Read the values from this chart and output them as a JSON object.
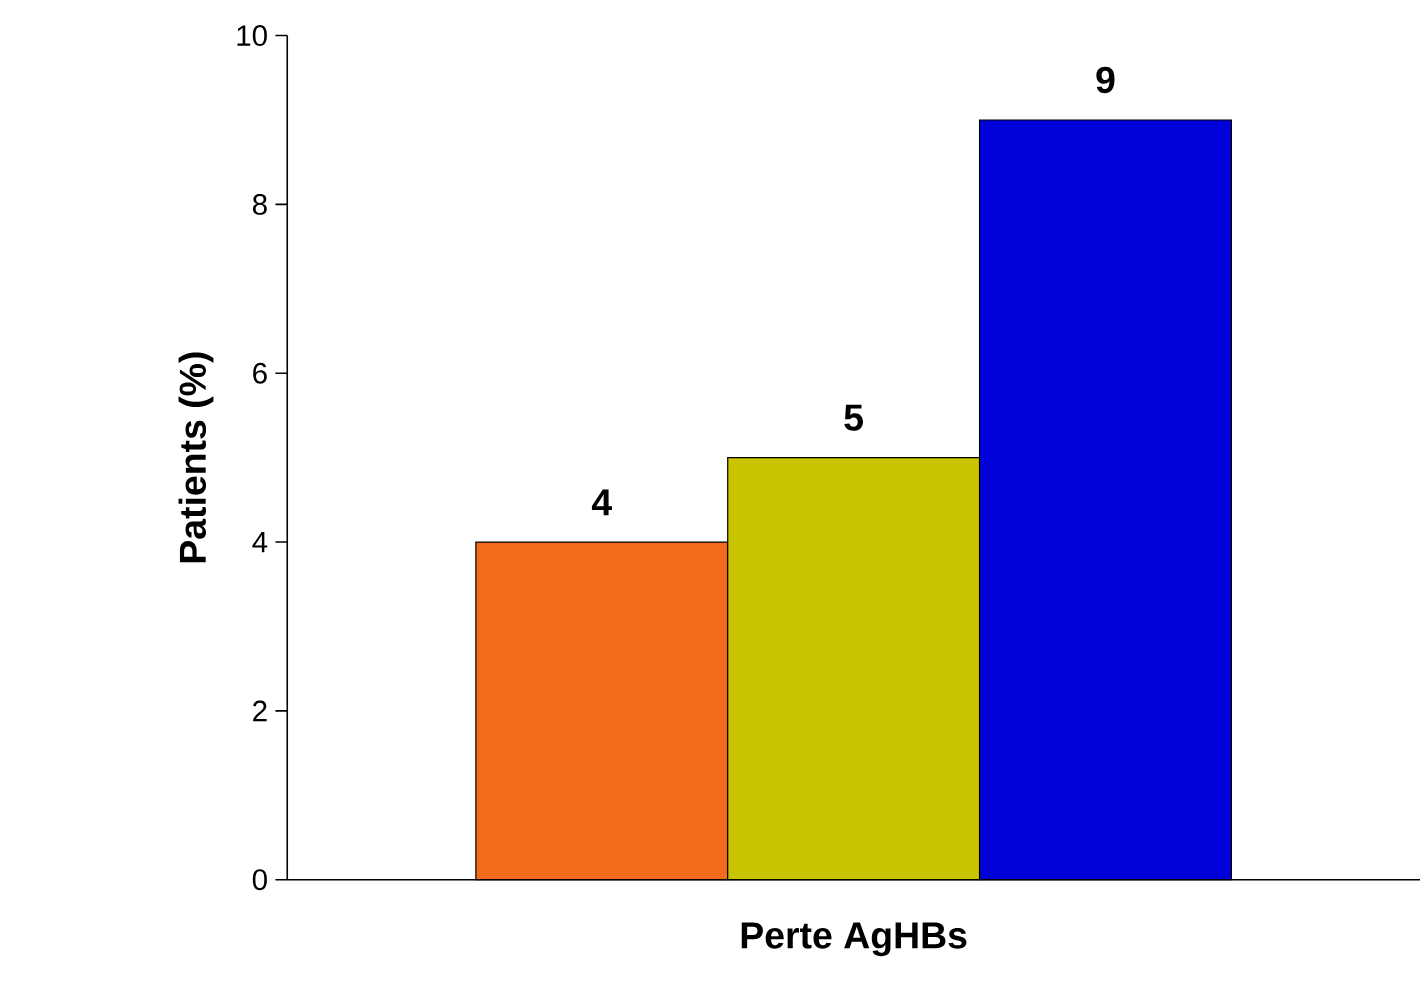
{
  "chart_data": {
    "type": "bar",
    "ylabel": "Patients (%)",
    "categories": [
      "Perte AgHBs"
    ],
    "series": [
      {
        "color": "#f26a1b",
        "values": [
          4
        ]
      },
      {
        "color": "#c9c300",
        "values": [
          5
        ]
      },
      {
        "color": "#0000d8",
        "values": [
          9
        ]
      }
    ],
    "ylim": [
      0,
      10
    ],
    "yticks": [
      0,
      2,
      4,
      6,
      8,
      10
    ],
    "data_labels": true
  }
}
